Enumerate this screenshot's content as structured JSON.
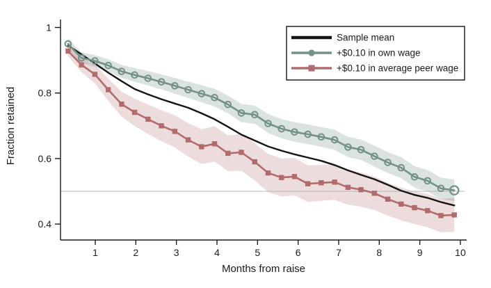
{
  "figure": {
    "background": "#ffffff",
    "text_color": "#1a1a1a",
    "axis_color": "#1a1a1a",
    "reference_line_color": "#b5b5b5"
  },
  "chart_data": {
    "type": "line",
    "title": "",
    "xlabel": "Months from raise",
    "ylabel": "Fraction retained",
    "xlim": [
      0.14,
      10.35
    ],
    "ylim": [
      0.352,
      1.02
    ],
    "x_ticks": [
      1,
      2,
      3,
      4,
      5,
      6,
      7,
      8,
      9,
      10
    ],
    "y_ticks": [
      1,
      0.8,
      0.6,
      0.4
    ],
    "y_tick_labels": [
      "1",
      "0.8",
      "0.6",
      "0.4"
    ],
    "grid": "none (single horizontal reference line at y = 0.5)",
    "reference_line_y": 0.5,
    "legend_position": "top-right inside plot, boxed",
    "x": [
      0.33,
      0.66,
      0.99,
      1.32,
      1.65,
      1.97,
      2.3,
      2.63,
      2.96,
      3.29,
      3.62,
      3.94,
      4.27,
      4.6,
      4.93,
      5.26,
      5.59,
      5.91,
      6.24,
      6.57,
      6.9,
      7.23,
      7.55,
      7.88,
      8.21,
      8.54,
      8.87,
      9.19,
      9.52,
      9.85
    ],
    "series": [
      {
        "key": "sample-mean",
        "name": "Sample mean",
        "color": "#141414",
        "marker": "none",
        "line_width": 2.4,
        "values": [
          0.945,
          0.918,
          0.89,
          0.862,
          0.836,
          0.812,
          0.796,
          0.781,
          0.768,
          0.755,
          0.738,
          0.72,
          0.697,
          0.673,
          0.655,
          0.637,
          0.624,
          0.613,
          0.603,
          0.593,
          0.58,
          0.564,
          0.55,
          0.537,
          0.52,
          0.502,
          0.489,
          0.48,
          0.467,
          0.457
        ]
      },
      {
        "key": "own-wage",
        "name": "+$0.10 in own wage",
        "color": "#739189",
        "marker": "circle",
        "line_width": 2.6,
        "band_opacity": 0.26,
        "values": [
          0.95,
          0.907,
          0.898,
          0.884,
          0.866,
          0.855,
          0.845,
          0.834,
          0.822,
          0.81,
          0.798,
          0.786,
          0.765,
          0.739,
          0.734,
          0.707,
          0.691,
          0.681,
          0.674,
          0.666,
          0.657,
          0.635,
          0.627,
          0.607,
          0.588,
          0.572,
          0.544,
          0.532,
          0.509,
          0.503
        ],
        "band_halfwidth": [
          0.015,
          0.017,
          0.018,
          0.019,
          0.02,
          0.021,
          0.022,
          0.023,
          0.024,
          0.025,
          0.026,
          0.027,
          0.027,
          0.028,
          0.028,
          0.029,
          0.029,
          0.03,
          0.03,
          0.03,
          0.031,
          0.031,
          0.031,
          0.032,
          0.032,
          0.032,
          0.033,
          0.033,
          0.033,
          0.033
        ]
      },
      {
        "key": "peer-wage",
        "name": "+$0.10 in average peer wage",
        "color": "#b26b6d",
        "marker": "square",
        "line_width": 2.6,
        "band_opacity": 0.24,
        "values": [
          0.928,
          0.886,
          0.857,
          0.81,
          0.766,
          0.741,
          0.72,
          0.7,
          0.683,
          0.657,
          0.636,
          0.645,
          0.616,
          0.619,
          0.59,
          0.556,
          0.542,
          0.545,
          0.523,
          0.526,
          0.528,
          0.512,
          0.505,
          0.494,
          0.476,
          0.461,
          0.45,
          0.441,
          0.426,
          0.428
        ],
        "band_halfwidth": [
          0.016,
          0.022,
          0.028,
          0.034,
          0.038,
          0.042,
          0.045,
          0.047,
          0.049,
          0.051,
          0.053,
          0.054,
          0.055,
          0.056,
          0.057,
          0.058,
          0.058,
          0.057,
          0.056,
          0.055,
          0.054,
          0.053,
          0.052,
          0.051,
          0.05,
          0.05,
          0.05,
          0.051,
          0.051,
          0.052
        ]
      }
    ]
  }
}
